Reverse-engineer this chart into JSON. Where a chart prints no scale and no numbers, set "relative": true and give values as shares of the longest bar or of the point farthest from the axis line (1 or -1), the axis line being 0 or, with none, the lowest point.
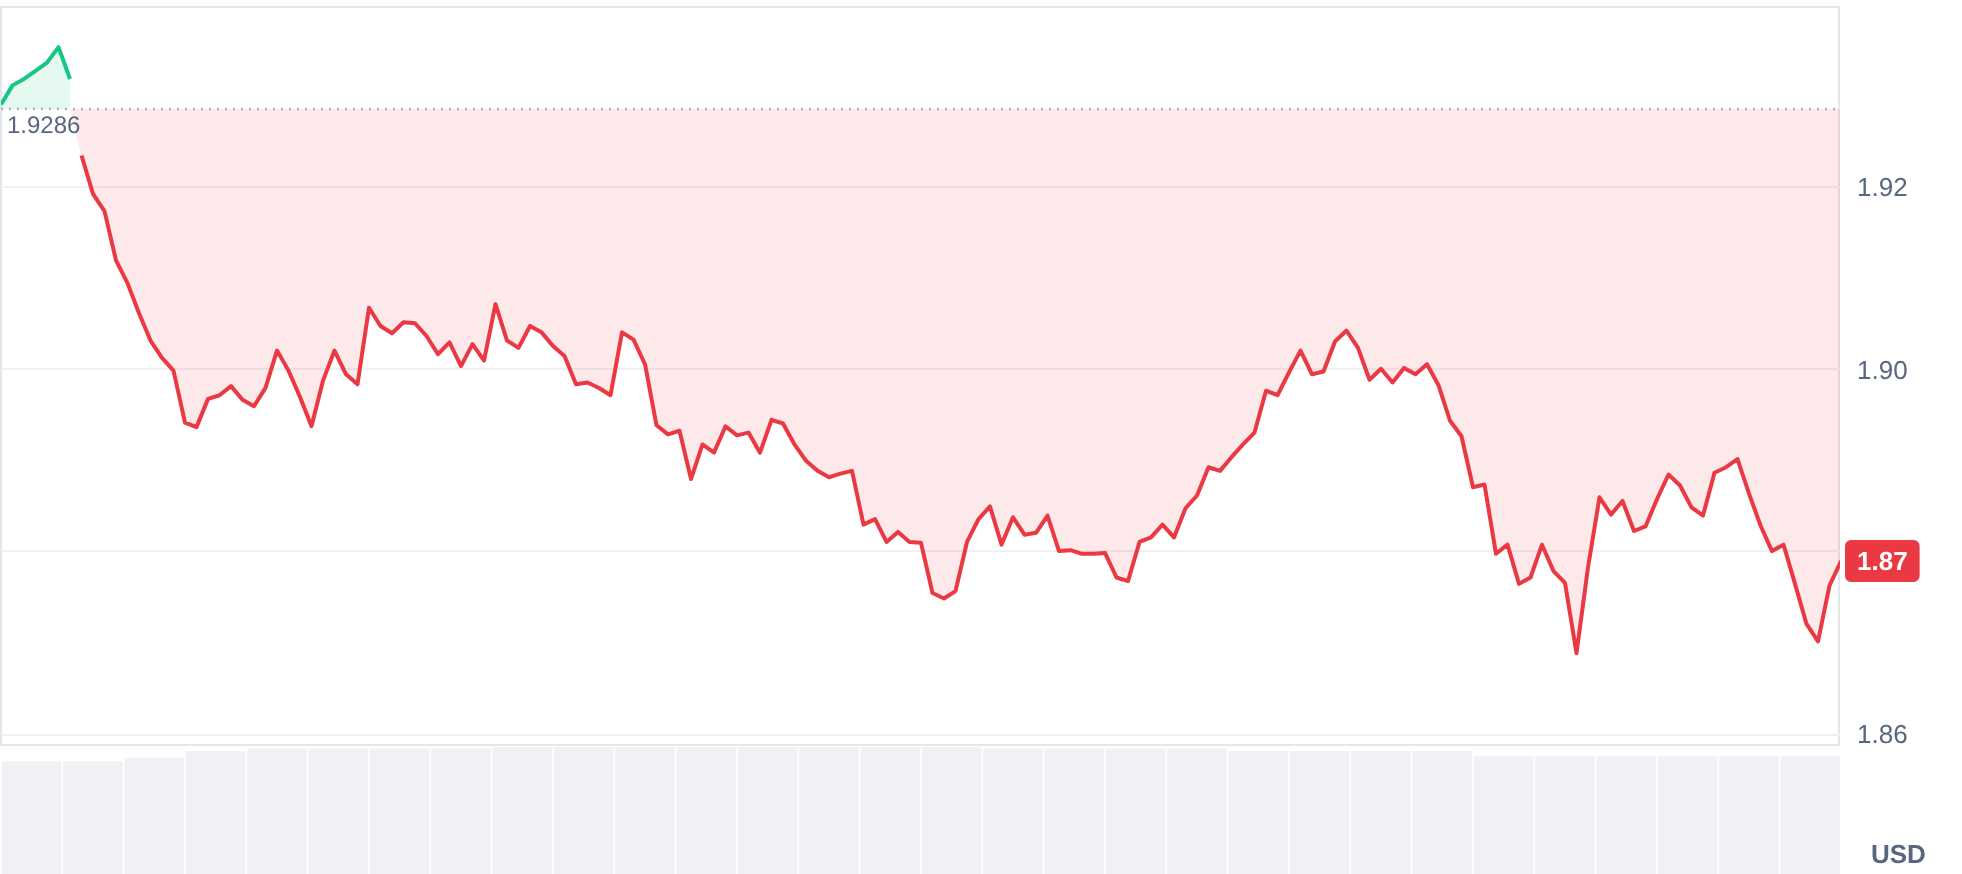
{
  "chart_data": [
    {
      "type": "line",
      "ylabel": "USD",
      "categories": [
        null,
        null,
        null,
        null,
        null,
        null,
        null,
        null,
        null,
        null,
        null,
        null,
        null,
        null,
        null,
        null,
        null,
        null,
        null,
        null,
        null,
        null,
        null,
        null,
        null,
        null,
        null,
        null,
        null,
        null,
        null,
        null,
        null,
        null,
        null,
        null,
        null,
        null,
        null,
        null,
        null,
        null,
        null,
        null,
        null,
        null,
        null,
        null,
        null,
        null,
        null,
        null,
        null,
        null,
        null,
        null,
        null,
        null,
        null,
        null,
        null,
        null,
        null,
        null,
        null,
        null,
        null,
        null,
        null,
        null,
        null,
        null,
        null,
        null,
        null,
        null,
        null,
        null,
        null,
        null,
        null,
        null,
        null,
        null,
        null,
        null,
        null,
        null,
        null,
        null,
        null,
        null,
        null,
        null,
        null,
        null,
        null,
        null,
        null,
        null,
        null,
        null,
        null,
        null,
        null,
        null,
        null,
        null,
        null,
        null,
        null,
        null,
        null,
        null,
        null,
        null,
        null,
        null,
        null,
        null,
        null,
        null,
        null,
        null,
        null,
        null,
        null,
        null,
        null,
        null,
        null,
        null,
        null,
        null,
        null,
        null,
        null,
        null,
        null,
        null,
        null,
        null,
        null,
        null,
        null,
        null,
        null,
        null,
        null,
        null,
        null,
        null,
        null,
        null,
        null,
        null,
        null,
        null,
        null,
        null,
        null
      ],
      "series": [
        {
          "color": "#16c784",
          "values": [
            1.9291,
            1.9312,
            1.9319,
            1.9328,
            1.9337,
            1.9354,
            1.9319,
            null,
            null,
            null,
            null,
            null,
            null,
            null,
            null,
            null,
            null,
            null,
            null,
            null,
            null,
            null,
            null,
            null,
            null,
            null,
            null,
            null,
            null,
            null,
            null,
            null,
            null,
            null,
            null,
            null,
            null,
            null,
            null,
            null,
            null,
            null,
            null,
            null,
            null,
            null,
            null,
            null,
            null,
            null,
            null,
            null,
            null,
            null,
            null,
            null,
            null,
            null,
            null,
            null,
            null,
            null,
            null,
            null,
            null,
            null,
            null,
            null,
            null,
            null,
            null,
            null,
            null,
            null,
            null,
            null,
            null,
            null,
            null,
            null,
            null,
            null,
            null,
            null,
            null,
            null,
            null,
            null,
            null,
            null,
            null,
            null,
            null,
            null,
            null,
            null,
            null,
            null,
            null,
            null,
            null,
            null,
            null,
            null,
            null,
            null,
            null,
            null,
            null,
            null,
            null,
            null,
            null,
            null,
            null,
            null,
            null,
            null,
            null,
            null,
            null,
            null,
            null,
            null,
            null,
            null,
            null,
            null,
            null,
            null,
            null,
            null,
            null,
            null,
            null,
            null,
            null,
            null,
            null,
            null,
            null,
            null,
            null,
            null,
            null,
            null,
            null,
            null,
            null,
            null,
            null,
            null,
            null,
            null,
            null,
            null,
            null,
            null,
            null,
            null,
            null
          ],
          "lower": [
            1.9286,
            1.9286,
            1.9286,
            1.9286,
            1.9286,
            1.9286,
            1.9286,
            null,
            null,
            null,
            null,
            null,
            null,
            null,
            null,
            null,
            null,
            null,
            null,
            null,
            null,
            null,
            null,
            null,
            null,
            null,
            null,
            null,
            null,
            null,
            null,
            null,
            null,
            null,
            null,
            null,
            null,
            null,
            null,
            null,
            null,
            null,
            null,
            null,
            null,
            null,
            null,
            null,
            null,
            null,
            null,
            null,
            null,
            null,
            null,
            null,
            null,
            null,
            null,
            null,
            null,
            null,
            null,
            null,
            null,
            null,
            null,
            null,
            null,
            null,
            null,
            null,
            null,
            null,
            null,
            null,
            null,
            null,
            null,
            null,
            null,
            null,
            null,
            null,
            null,
            null,
            null,
            null,
            null,
            null,
            null,
            null,
            null,
            null,
            null,
            null,
            null,
            null,
            null,
            null,
            null,
            null,
            null,
            null,
            null,
            null,
            null,
            null,
            null,
            null,
            null,
            null,
            null,
            null,
            null,
            null,
            null,
            null,
            null,
            null,
            null,
            null,
            null,
            null,
            null,
            null,
            null,
            null,
            null,
            null,
            null,
            null,
            null,
            null,
            null,
            null,
            null,
            null,
            null,
            null,
            null,
            null,
            null,
            null,
            null,
            null,
            null,
            null,
            null,
            null,
            null,
            null,
            null,
            null,
            null,
            null,
            null,
            null,
            null,
            null,
            null
          ],
          "upper": [
            1.9291,
            1.9312,
            1.9319,
            1.9328,
            1.9337,
            1.9354,
            1.9319,
            null,
            null,
            null,
            null,
            null,
            null,
            null,
            null,
            null,
            null,
            null,
            null,
            null,
            null,
            null,
            null,
            null,
            null,
            null,
            null,
            null,
            null,
            null,
            null,
            null,
            null,
            null,
            null,
            null,
            null,
            null,
            null,
            null,
            null,
            null,
            null,
            null,
            null,
            null,
            null,
            null,
            null,
            null,
            null,
            null,
            null,
            null,
            null,
            null,
            null,
            null,
            null,
            null,
            null,
            null,
            null,
            null,
            null,
            null,
            null,
            null,
            null,
            null,
            null,
            null,
            null,
            null,
            null,
            null,
            null,
            null,
            null,
            null,
            null,
            null,
            null,
            null,
            null,
            null,
            null,
            null,
            null,
            null,
            null,
            null,
            null,
            null,
            null,
            null,
            null,
            null,
            null,
            null,
            null,
            null,
            null,
            null,
            null,
            null,
            null,
            null,
            null,
            null,
            null,
            null,
            null,
            null,
            null,
            null,
            null,
            null,
            null,
            null,
            null,
            null,
            null,
            null,
            null,
            null,
            null,
            null,
            null,
            null,
            null,
            null,
            null,
            null,
            null,
            null,
            null,
            null,
            null,
            null,
            null,
            null,
            null,
            null,
            null,
            null,
            null,
            null,
            null,
            null,
            null,
            null,
            null,
            null,
            null,
            null,
            null,
            null,
            null,
            null,
            null
          ]
        },
        {
          "color": "#ea3943",
          "values": [
            null,
            null,
            null,
            null,
            null,
            null,
            null,
            1.9235,
            1.9193,
            1.9174,
            1.912,
            1.9095,
            1.9062,
            1.9032,
            1.9013,
            1.8999,
            1.8942,
            1.8937,
            1.8968,
            1.8972,
            1.8982,
            1.8967,
            1.896,
            1.898,
            1.9021,
            1.8999,
            1.897,
            1.8938,
            1.8988,
            1.9021,
            1.8995,
            1.8984,
            1.9068,
            1.9048,
            1.904,
            1.9052,
            1.9051,
            1.9037,
            1.9017,
            1.903,
            1.9004,
            1.9028,
            1.901,
            1.9072,
            1.9032,
            1.9024,
            1.9048,
            1.9041,
            1.9026,
            1.9015,
            1.8984,
            1.8986,
            1.898,
            1.8972,
            1.9041,
            1.9033,
            1.9006,
            1.8939,
            1.8929,
            1.8933,
            1.888,
            1.8918,
            1.8909,
            1.8938,
            1.8928,
            1.8931,
            1.8909,
            1.8945,
            1.8941,
            1.8918,
            1.89,
            1.8889,
            1.8882,
            1.8886,
            1.8889,
            1.883,
            1.8836,
            1.8811,
            1.8822,
            1.8811,
            1.881,
            1.8755,
            1.8749,
            1.8757,
            1.8811,
            1.8836,
            1.885,
            1.8808,
            1.8838,
            1.8819,
            1.8821,
            1.884,
            1.8801,
            1.8802,
            1.8798,
            1.8798,
            1.8799,
            1.8772,
            1.8768,
            1.8811,
            1.8816,
            1.883,
            1.8816,
            1.8848,
            1.8862,
            1.8893,
            1.8889,
            1.8904,
            1.8918,
            1.8931,
            1.8977,
            1.8972,
            1.8997,
            1.9021,
            1.8995,
            1.8998,
            1.9031,
            1.9043,
            1.9024,
            1.8989,
            1.9001,
            1.8986,
            1.9002,
            1.8995,
            1.9006,
            1.8983,
            1.8944,
            1.8927,
            1.8871,
            1.8874,
            1.8798,
            1.8808,
            1.8765,
            1.8772,
            1.8808,
            1.8779,
            1.8766,
            1.8689,
            1.8783,
            1.886,
            1.8841,
            1.8856,
            1.8823,
            1.8828,
            1.8858,
            1.8885,
            1.8873,
            1.8849,
            1.884,
            1.8887,
            1.8893,
            1.8902,
            1.8864,
            1.8829,
            1.8801,
            1.8808,
            1.8765,
            1.8721,
            1.8702,
            1.8763,
            1.879
          ],
          "lower": [
            1.9286,
            1.9286,
            1.9286,
            1.9286,
            1.9286,
            1.9286,
            1.9286,
            1.9235,
            1.9193,
            1.9174,
            1.912,
            1.9095,
            1.9062,
            1.9032,
            1.9013,
            1.8999,
            1.8942,
            1.8937,
            1.8968,
            1.8972,
            1.8982,
            1.8967,
            1.896,
            1.898,
            1.9021,
            1.8999,
            1.897,
            1.8938,
            1.8988,
            1.9021,
            1.8995,
            1.8984,
            1.9068,
            1.9048,
            1.904,
            1.9052,
            1.9051,
            1.9037,
            1.9017,
            1.903,
            1.9004,
            1.9028,
            1.901,
            1.9072,
            1.9032,
            1.9024,
            1.9048,
            1.9041,
            1.9026,
            1.9015,
            1.8984,
            1.8986,
            1.898,
            1.8972,
            1.9041,
            1.9033,
            1.9006,
            1.8939,
            1.8929,
            1.8933,
            1.888,
            1.8918,
            1.8909,
            1.8938,
            1.8928,
            1.8931,
            1.8909,
            1.8945,
            1.8941,
            1.8918,
            1.89,
            1.8889,
            1.8882,
            1.8886,
            1.8889,
            1.883,
            1.8836,
            1.8811,
            1.8822,
            1.8811,
            1.881,
            1.8755,
            1.8749,
            1.8757,
            1.8811,
            1.8836,
            1.885,
            1.8808,
            1.8838,
            1.8819,
            1.8821,
            1.884,
            1.8801,
            1.8802,
            1.8798,
            1.8798,
            1.8799,
            1.8772,
            1.8768,
            1.8811,
            1.8816,
            1.883,
            1.8816,
            1.8848,
            1.8862,
            1.8893,
            1.8889,
            1.8904,
            1.8918,
            1.8931,
            1.8977,
            1.8972,
            1.8997,
            1.9021,
            1.8995,
            1.8998,
            1.9031,
            1.9043,
            1.9024,
            1.8989,
            1.9001,
            1.8986,
            1.9002,
            1.8995,
            1.9006,
            1.8983,
            1.8944,
            1.8927,
            1.8871,
            1.8874,
            1.8798,
            1.8808,
            1.8765,
            1.8772,
            1.8808,
            1.8779,
            1.8766,
            1.8689,
            1.8783,
            1.886,
            1.8841,
            1.8856,
            1.8823,
            1.8828,
            1.8858,
            1.8885,
            1.8873,
            1.8849,
            1.884,
            1.8887,
            1.8893,
            1.8902,
            1.8864,
            1.8829,
            1.8801,
            1.8808,
            1.8765,
            1.8721,
            1.8702,
            1.8763,
            1.879
          ],
          "upper": [
            1.9286,
            1.9286,
            1.9286,
            1.9286,
            1.9286,
            1.9286,
            1.9286,
            1.9286,
            1.9286,
            1.9286,
            1.9286,
            1.9286,
            1.9286,
            1.9286,
            1.9286,
            1.9286,
            1.9286,
            1.9286,
            1.9286,
            1.9286,
            1.9286,
            1.9286,
            1.9286,
            1.9286,
            1.9286,
            1.9286,
            1.9286,
            1.9286,
            1.9286,
            1.9286,
            1.9286,
            1.9286,
            1.9286,
            1.9286,
            1.9286,
            1.9286,
            1.9286,
            1.9286,
            1.9286,
            1.9286,
            1.9286,
            1.9286,
            1.9286,
            1.9286,
            1.9286,
            1.9286,
            1.9286,
            1.9286,
            1.9286,
            1.9286,
            1.9286,
            1.9286,
            1.9286,
            1.9286,
            1.9286,
            1.9286,
            1.9286,
            1.9286,
            1.9286,
            1.9286,
            1.9286,
            1.9286,
            1.9286,
            1.9286,
            1.9286,
            1.9286,
            1.9286,
            1.9286,
            1.9286,
            1.9286,
            1.9286,
            1.9286,
            1.9286,
            1.9286,
            1.9286,
            1.9286,
            1.9286,
            1.9286,
            1.9286,
            1.9286,
            1.9286,
            1.9286,
            1.9286,
            1.9286,
            1.9286,
            1.9286,
            1.9286,
            1.9286,
            1.9286,
            1.9286,
            1.9286,
            1.9286,
            1.9286,
            1.9286,
            1.9286,
            1.9286,
            1.9286,
            1.9286,
            1.9286,
            1.9286,
            1.9286,
            1.9286,
            1.9286,
            1.9286,
            1.9286,
            1.9286,
            1.9286,
            1.9286,
            1.9286,
            1.9286,
            1.9286,
            1.9286,
            1.9286,
            1.9286,
            1.9286,
            1.9286,
            1.9286,
            1.9286,
            1.9286,
            1.9286,
            1.9286,
            1.9286,
            1.9286,
            1.9286,
            1.9286,
            1.9286,
            1.9286,
            1.9286,
            1.9286,
            1.9286,
            1.9286,
            1.9286,
            1.9286,
            1.9286,
            1.9286,
            1.9286,
            1.9286,
            1.9286,
            1.9286,
            1.9286,
            1.9286,
            1.9286,
            1.9286,
            1.9286,
            1.9286,
            1.9286,
            1.9286,
            1.9286,
            1.9286,
            1.9286,
            1.9286,
            1.9286,
            1.9286,
            1.9286,
            1.9286,
            1.9286,
            1.9286,
            1.9286,
            1.9286,
            1.9286,
            1.9286
          ]
        }
      ],
      "ylim": [
        1.8586,
        1.9398
      ],
      "yticks": [
        1.86,
        {
          "value": 1.88,
          "label": null
        },
        {
          "value": 1.9,
          "label": "1.90"
        },
        1.92
      ],
      "grid": "y",
      "tick_labels": "y",
      "ref_lines": [
        {
          "axis": "y",
          "value": 1.9286,
          "label": "1.9286",
          "line_style": "dotted",
          "color": "#a6b0c3"
        }
      ],
      "annotations": [
        "1.87"
      ]
    },
    {
      "type": "bar",
      "relative": true,
      "color": "#eff1f5",
      "categories": [
        null,
        null,
        null,
        null,
        null,
        null,
        null,
        null,
        null,
        null,
        null,
        null,
        null,
        null,
        null,
        null,
        null,
        null,
        null,
        null,
        null,
        null,
        null,
        null,
        null,
        null,
        null,
        null,
        null,
        null
      ],
      "values": [
        0.88,
        0.88,
        0.91,
        0.96,
        0.98,
        0.98,
        0.98,
        0.98,
        1,
        1,
        1,
        1,
        1,
        1,
        1,
        1,
        0.98,
        0.98,
        0.98,
        0.98,
        0.96,
        0.96,
        0.96,
        0.96,
        0.92,
        0.92,
        0.92,
        0.92,
        0.92,
        0.92
      ]
    }
  ]
}
